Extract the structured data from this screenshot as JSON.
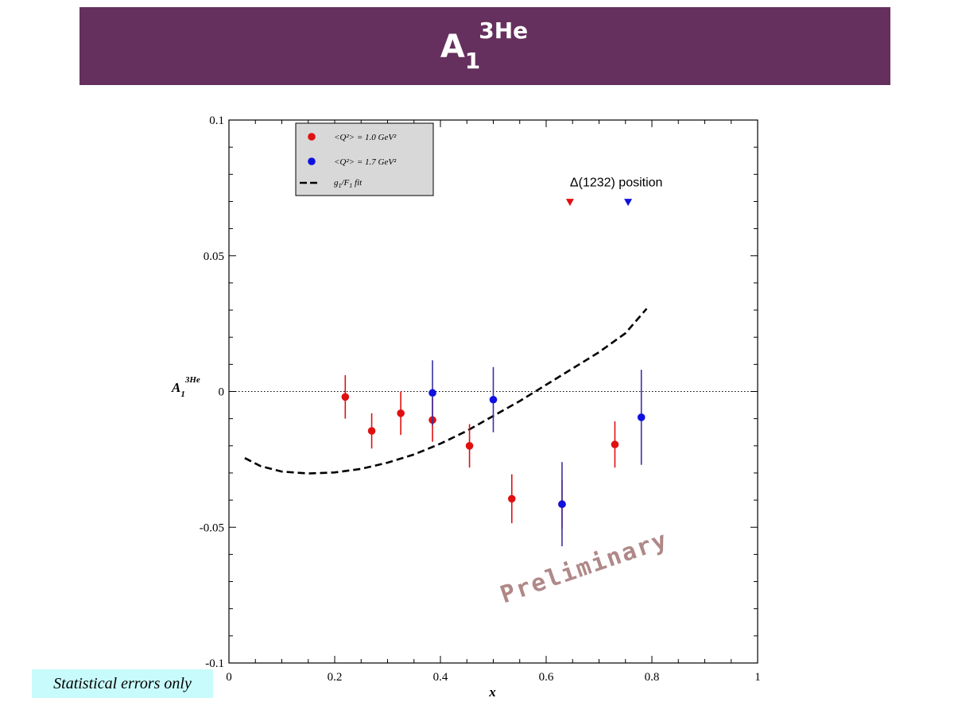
{
  "slide": {
    "title_main": "A",
    "title_sub": "1",
    "title_sup": "3He",
    "note": "Statistical errors only"
  },
  "colors": {
    "banner": "#65305e",
    "series_q1": "#e01010",
    "series_q17": "#1010e0",
    "err_q17": "#3a30a0",
    "watermark": "#b08888",
    "note_bg": "#c8fbfb"
  },
  "chart_data": {
    "type": "scatter",
    "xlabel": "x",
    "ylabel_main": "A",
    "ylabel_sub": "1",
    "ylabel_sup": "3He",
    "xlim": [
      0,
      1
    ],
    "ylim": [
      -0.1,
      0.1
    ],
    "x_ticks": [
      "0",
      "0.2",
      "0.4",
      "0.6",
      "0.8",
      "1"
    ],
    "y_ticks": [
      "-0.1",
      "-0.05",
      "0",
      "0.05",
      "0.1"
    ],
    "zero_line": "dotted",
    "legend_position": "top-left",
    "series": [
      {
        "name": "<Q²> = 1.0 GeV²",
        "legend_label": "<Q²> = 1.0 GeV²",
        "color_key": "series_q1",
        "points": [
          {
            "x": 0.22,
            "y": -0.002,
            "err": 0.008
          },
          {
            "x": 0.27,
            "y": -0.0145,
            "err": 0.0065
          },
          {
            "x": 0.325,
            "y": -0.008,
            "err": 0.008
          },
          {
            "x": 0.385,
            "y": -0.0105,
            "err": 0.008
          },
          {
            "x": 0.455,
            "y": -0.02,
            "err": 0.008
          },
          {
            "x": 0.535,
            "y": -0.0395,
            "err": 0.009
          },
          {
            "x": 0.63,
            "y": -0.0415,
            "err": 0.009
          },
          {
            "x": 0.73,
            "y": -0.0195,
            "err": 0.0085
          }
        ]
      },
      {
        "name": "<Q²> = 1.7 GeV²",
        "legend_label": "<Q²> = 1.7 GeV²",
        "color_key": "series_q17",
        "points": [
          {
            "x": 0.385,
            "y": -0.0005,
            "err": 0.012
          },
          {
            "x": 0.5,
            "y": -0.003,
            "err": 0.012
          },
          {
            "x": 0.63,
            "y": -0.0415,
            "err": 0.0155
          },
          {
            "x": 0.78,
            "y": -0.0095,
            "err": 0.0175
          }
        ]
      }
    ],
    "fit": {
      "name": "g1/F1 fit",
      "legend_label_main": "g",
      "legend_label_rest": "/F",
      "points": [
        [
          0.03,
          -0.0245
        ],
        [
          0.06,
          -0.0275
        ],
        [
          0.1,
          -0.0295
        ],
        [
          0.15,
          -0.0302
        ],
        [
          0.2,
          -0.0298
        ],
        [
          0.25,
          -0.0285
        ],
        [
          0.3,
          -0.0262
        ],
        [
          0.35,
          -0.0232
        ],
        [
          0.4,
          -0.0192
        ],
        [
          0.45,
          -0.0145
        ],
        [
          0.5,
          -0.009
        ],
        [
          0.55,
          -0.0035
        ],
        [
          0.6,
          0.0025
        ],
        [
          0.65,
          0.0085
        ],
        [
          0.7,
          0.0145
        ],
        [
          0.75,
          0.0215
        ],
        [
          0.79,
          0.0305
        ]
      ]
    },
    "annotation": {
      "text": "Δ(1232) position",
      "markers": [
        {
          "x": 0.645,
          "y": 0.0695,
          "color_key": "series_q1"
        },
        {
          "x": 0.755,
          "y": 0.0695,
          "color_key": "series_q17"
        }
      ]
    },
    "watermark": "Preliminary"
  }
}
